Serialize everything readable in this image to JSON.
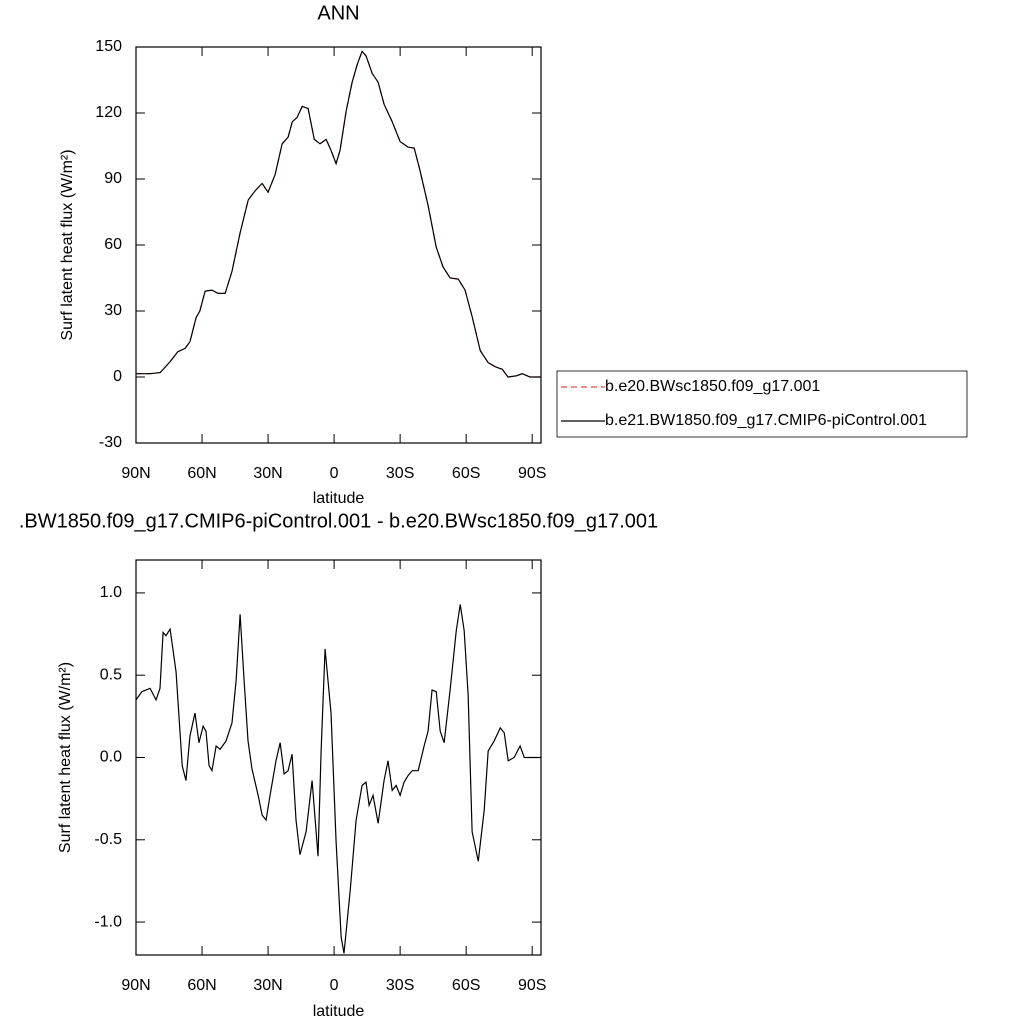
{
  "chart_data": [
    {
      "type": "line",
      "title": "ANN",
      "x_label": "latitude",
      "y_label": "Surf latent heat flux (W/m²)",
      "xlim": [
        90,
        -94
      ],
      "ylim": [
        -30,
        150
      ],
      "xticks": [
        {
          "value": 90,
          "label": "90N"
        },
        {
          "value": 60,
          "label": "60N"
        },
        {
          "value": 30,
          "label": "30N"
        },
        {
          "value": 0,
          "label": "0"
        },
        {
          "value": -30,
          "label": "30S"
        },
        {
          "value": -60,
          "label": "60S"
        },
        {
          "value": -90,
          "label": "90S"
        }
      ],
      "yticks": [
        -30,
        0,
        30,
        60,
        90,
        120,
        150
      ],
      "legend": "right",
      "x": [
        90,
        83.6,
        79,
        74.5,
        71,
        67.7,
        65.5,
        62.7,
        61,
        58.6,
        55.5,
        52.7,
        49.5,
        46.4,
        42.7,
        39,
        36,
        32.7,
        30,
        26.8,
        23.6,
        20.9,
        19,
        16.8,
        14.5,
        11.8,
        9,
        6.4,
        3.6,
        1.4,
        -0.9,
        -2.7,
        -5.5,
        -8.2,
        -10.5,
        -12.7,
        -14.5,
        -17.3,
        -20,
        -22.7,
        -26.4,
        -30,
        -33.6,
        -36.4,
        -39,
        -42.7,
        -46.4,
        -49.5,
        -52.7,
        -56.4,
        -59.5,
        -62.7,
        -66.4,
        -70,
        -73.6,
        -76.4,
        -79,
        -82.7,
        -85.5,
        -89,
        -94
      ],
      "series": [
        {
          "name": "b.e20.BWsc1850.f09_g17.001",
          "color": "#f04848",
          "dashed": true,
          "values": [
            1.5,
            1.5,
            2,
            7,
            11.5,
            13,
            16,
            27,
            30,
            39,
            39.5,
            38,
            38,
            48,
            65.5,
            80.5,
            84.5,
            88,
            84,
            92,
            106,
            109,
            116,
            118,
            123,
            122,
            108,
            106,
            108,
            103,
            97,
            103,
            121,
            134,
            142,
            148,
            146,
            138,
            134,
            124,
            116,
            107,
            104.5,
            104,
            94,
            78,
            59,
            50,
            45,
            44.5,
            39.5,
            27.5,
            12,
            6.5,
            4.5,
            3.5,
            0,
            0.5,
            1.5,
            0,
            0
          ]
        },
        {
          "name": "b.e21.BW1850.f09_g17.CMIP6-piControl.001",
          "color": "#000000",
          "dashed": false,
          "values": [
            1.5,
            1.5,
            2,
            7,
            11.5,
            13,
            16,
            27,
            30,
            39,
            39.5,
            38,
            38,
            48,
            65.5,
            80.5,
            84.5,
            88,
            84,
            92,
            106,
            109,
            116,
            118,
            123,
            122,
            108,
            106,
            108,
            103,
            97,
            103,
            121,
            134,
            142,
            148,
            146,
            138,
            134,
            124,
            116,
            107,
            104.5,
            104,
            94,
            78,
            59,
            50,
            45,
            44.5,
            39.5,
            27.5,
            12,
            6.5,
            4.5,
            3.5,
            0,
            0.5,
            1.5,
            0,
            0
          ]
        }
      ]
    },
    {
      "type": "line",
      "title": ".BW1850.f09_g17.CMIP6-piControl.001 - b.e20.BWsc1850.f09_g17.001",
      "x_label": "latitude",
      "y_label": "Surf latent heat flux (W/m²)",
      "xlim": [
        90,
        -94
      ],
      "ylim": [
        -1.2,
        1.2
      ],
      "xticks": [
        {
          "value": 90,
          "label": "90N"
        },
        {
          "value": 60,
          "label": "60N"
        },
        {
          "value": 30,
          "label": "30N"
        },
        {
          "value": 0,
          "label": "0"
        },
        {
          "value": -30,
          "label": "30S"
        },
        {
          "value": -60,
          "label": "60S"
        },
        {
          "value": -90,
          "label": "90S"
        }
      ],
      "yticks": [
        {
          "value": -1,
          "label": "-1.0"
        },
        -0.5,
        {
          "value": 0,
          "label": "0.0"
        },
        0.5,
        {
          "value": 1,
          "label": "1.0"
        }
      ],
      "color": "#000000",
      "x": [
        90,
        87.3,
        83.6,
        80.9,
        79.1,
        77.7,
        76.4,
        74.5,
        71.8,
        69,
        67.3,
        65.5,
        63.2,
        61.4,
        59.5,
        58.2,
        56.8,
        55.5,
        53.6,
        51.8,
        49.1,
        46.4,
        44.5,
        42.7,
        40.9,
        39.1,
        37.3,
        34.5,
        32.7,
        30.9,
        29.1,
        26.4,
        24.5,
        22.7,
        20.9,
        19.1,
        17.3,
        15.5,
        12.7,
        10,
        7.3,
        5.9,
        4.1,
        1.4,
        -0.9,
        -3.2,
        -4.5,
        -7.3,
        -10,
        -12.7,
        -14.5,
        -15.9,
        -17.7,
        -20,
        -22.7,
        -24.5,
        -26.4,
        -28.2,
        -30,
        -31.8,
        -33.6,
        -35.5,
        -38.2,
        -40.9,
        -42.7,
        -44.5,
        -46.4,
        -48.2,
        -50,
        -52.7,
        -55.5,
        -57.3,
        -59.1,
        -60.9,
        -62.7,
        -65.5,
        -68.2,
        -70,
        -72.7,
        -75.5,
        -77.3,
        -79.1,
        -81.8,
        -84.5,
        -86.4,
        -90,
        -94
      ],
      "values": [
        0.35,
        0.4,
        0.42,
        0.35,
        0.42,
        0.76,
        0.74,
        0.78,
        0.52,
        -0.05,
        -0.14,
        0.13,
        0.27,
        0.09,
        0.19,
        0.16,
        -0.05,
        -0.08,
        0.07,
        0.05,
        0.1,
        0.21,
        0.47,
        0.87,
        0.47,
        0.1,
        -0.07,
        -0.23,
        -0.35,
        -0.38,
        -0.23,
        -0.02,
        0.09,
        -0.1,
        -0.08,
        0.02,
        -0.38,
        -0.59,
        -0.45,
        -0.14,
        -0.6,
        0.04,
        0.66,
        0.27,
        -0.51,
        -1.09,
        -1.19,
        -0.81,
        -0.38,
        -0.17,
        -0.15,
        -0.29,
        -0.23,
        -0.4,
        -0.14,
        -0.02,
        -0.2,
        -0.17,
        -0.23,
        -0.15,
        -0.11,
        -0.08,
        -0.08,
        0.07,
        0.16,
        0.41,
        0.4,
        0.16,
        0.09,
        0.41,
        0.77,
        0.93,
        0.77,
        0.38,
        -0.45,
        -0.63,
        -0.32,
        0.04,
        0.1,
        0.18,
        0.15,
        -0.02,
        0,
        0.07,
        0,
        0,
        0
      ]
    }
  ]
}
